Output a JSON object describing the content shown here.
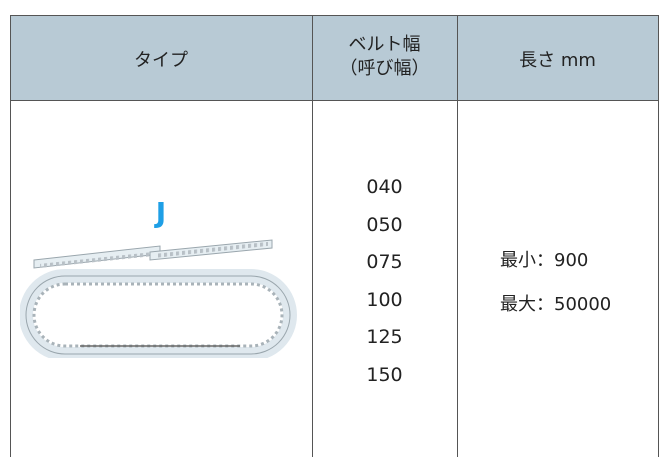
{
  "table": {
    "header": [
      "タイプ",
      [
        "ベルト幅",
        "（呼び幅）"
      ],
      "長さ mm"
    ],
    "rows": [
      {
        "type": "J",
        "widths": [
          "040",
          "050",
          "075",
          "100",
          "125",
          "150"
        ],
        "length": [
          "最小：900",
          "最大：50000"
        ]
      }
    ]
  }
}
